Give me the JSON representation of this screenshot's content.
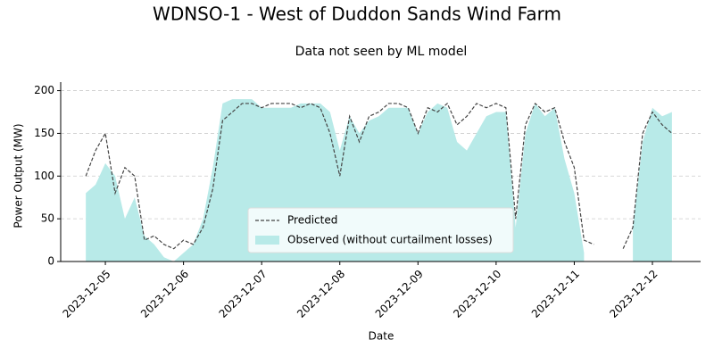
{
  "chart_data": {
    "type": "line",
    "title": "WDNSO-1 - West of Duddon Sands Wind Farm",
    "subtitle": "Data not seen by ML model",
    "x_label": "Date",
    "y_label": "Power Output (MW)",
    "x": [
      "2023-12-04 18:00",
      "2023-12-04 21:00",
      "2023-12-05 00:00",
      "2023-12-05 03:00",
      "2023-12-05 06:00",
      "2023-12-05 09:00",
      "2023-12-05 12:00",
      "2023-12-05 15:00",
      "2023-12-05 18:00",
      "2023-12-05 21:00",
      "2023-12-06 00:00",
      "2023-12-06 03:00",
      "2023-12-06 06:00",
      "2023-12-06 09:00",
      "2023-12-06 12:00",
      "2023-12-06 15:00",
      "2023-12-06 18:00",
      "2023-12-06 21:00",
      "2023-12-07 00:00",
      "2023-12-07 03:00",
      "2023-12-07 06:00",
      "2023-12-07 09:00",
      "2023-12-07 12:00",
      "2023-12-07 15:00",
      "2023-12-07 18:00",
      "2023-12-07 21:00",
      "2023-12-08 00:00",
      "2023-12-08 03:00",
      "2023-12-08 06:00",
      "2023-12-08 09:00",
      "2023-12-08 12:00",
      "2023-12-08 15:00",
      "2023-12-08 18:00",
      "2023-12-08 21:00",
      "2023-12-09 00:00",
      "2023-12-09 03:00",
      "2023-12-09 06:00",
      "2023-12-09 09:00",
      "2023-12-09 12:00",
      "2023-12-09 15:00",
      "2023-12-09 18:00",
      "2023-12-09 21:00",
      "2023-12-10 00:00",
      "2023-12-10 03:00",
      "2023-12-10 06:00",
      "2023-12-10 09:00",
      "2023-12-10 12:00",
      "2023-12-10 15:00",
      "2023-12-10 18:00",
      "2023-12-10 21:00",
      "2023-12-11 00:00",
      "2023-12-11 03:00",
      "2023-12-11 06:00",
      "2023-12-11 09:00",
      "2023-12-11 12:00",
      "2023-12-11 15:00",
      "2023-12-11 18:00",
      "2023-12-11 21:00",
      "2023-12-12 00:00",
      "2023-12-12 03:00",
      "2023-12-12 06:00"
    ],
    "series": [
      {
        "name": "Observed (without curtailment losses)",
        "color": "#b8eae8",
        "fill": true,
        "values": [
          80,
          90,
          115,
          100,
          50,
          75,
          30,
          20,
          5,
          0,
          10,
          20,
          50,
          110,
          185,
          190,
          190,
          190,
          180,
          180,
          180,
          180,
          185,
          185,
          185,
          175,
          130,
          170,
          150,
          165,
          170,
          180,
          180,
          180,
          150,
          175,
          185,
          180,
          140,
          130,
          150,
          170,
          175,
          175,
          40,
          150,
          185,
          170,
          180,
          120,
          80,
          10,
          null,
          null,
          null,
          null,
          40,
          140,
          180,
          170,
          175
        ]
      },
      {
        "name": "Predicted",
        "color": "#444444",
        "dashed": true,
        "values": [
          100,
          130,
          150,
          80,
          110,
          100,
          25,
          30,
          20,
          15,
          25,
          20,
          40,
          85,
          165,
          175,
          185,
          185,
          180,
          185,
          185,
          185,
          180,
          185,
          180,
          150,
          100,
          170,
          140,
          170,
          175,
          185,
          185,
          180,
          150,
          180,
          175,
          185,
          160,
          170,
          185,
          180,
          185,
          180,
          50,
          160,
          185,
          175,
          180,
          140,
          110,
          25,
          20,
          null,
          null,
          15,
          40,
          150,
          175,
          160,
          150
        ]
      }
    ],
    "legend_order": [
      1,
      0
    ],
    "legend": "lower center",
    "xlim": [
      "2023-12-04 10:17",
      "2023-12-12 14:48"
    ],
    "xticks": [
      "2023-12-05",
      "2023-12-06",
      "2023-12-07",
      "2023-12-08",
      "2023-12-09",
      "2023-12-10",
      "2023-12-11",
      "2023-12-12"
    ],
    "ylim": [
      0,
      210
    ],
    "yticks": [
      0,
      50,
      100,
      150,
      200
    ],
    "grid": true
  }
}
